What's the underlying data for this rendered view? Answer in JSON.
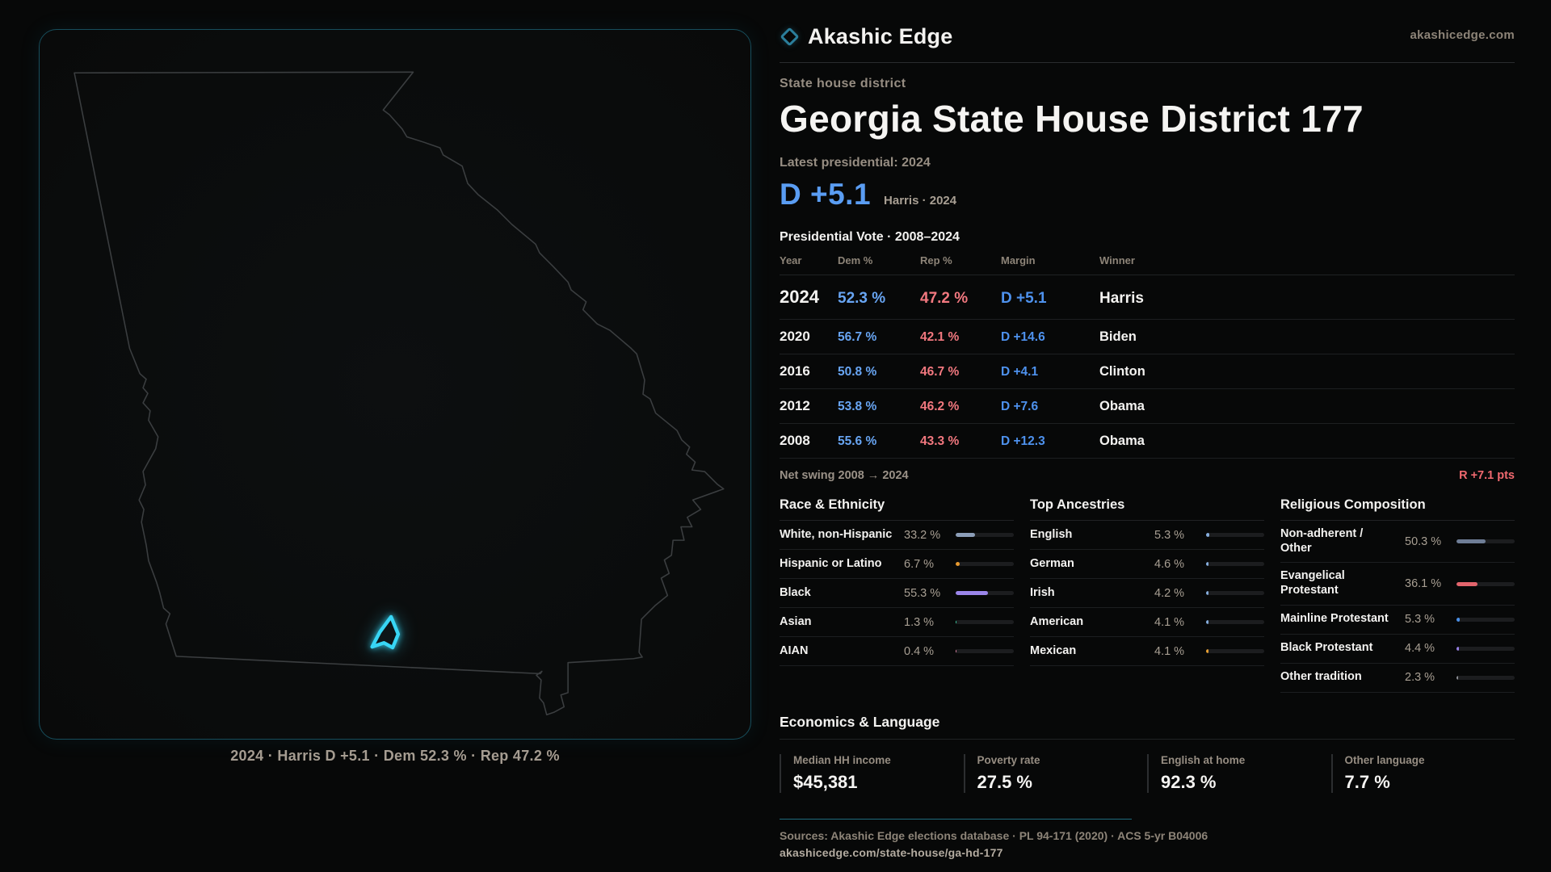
{
  "brand": {
    "name": "Akashic Edge",
    "site": "akashicedge.com"
  },
  "map": {
    "caption": "2024 · Harris D +5.1 · Dem 52.3 % · Rep 47.2 %"
  },
  "header": {
    "eyebrow": "State house district",
    "title": "Georgia State House District 177",
    "latest_label": "Latest presidential: 2024",
    "lead_margin": "D +5.1",
    "lead_sub": "Harris · 2024"
  },
  "table": {
    "title": "Presidential Vote · 2008–2024",
    "columns": [
      "Year",
      "Dem %",
      "Rep %",
      "Margin",
      "Winner"
    ],
    "rows": [
      {
        "year": "2024",
        "dem": "52.3 %",
        "rep": "47.2 %",
        "margin": "D +5.1",
        "winner": "Harris"
      },
      {
        "year": "2020",
        "dem": "56.7 %",
        "rep": "42.1 %",
        "margin": "D +14.6",
        "winner": "Biden"
      },
      {
        "year": "2016",
        "dem": "50.8 %",
        "rep": "46.7 %",
        "margin": "D +4.1",
        "winner": "Clinton"
      },
      {
        "year": "2012",
        "dem": "53.8 %",
        "rep": "46.2 %",
        "margin": "D +7.6",
        "winner": "Obama"
      },
      {
        "year": "2008",
        "dem": "55.6 %",
        "rep": "43.3 %",
        "margin": "D +12.3",
        "winner": "Obama"
      }
    ]
  },
  "net_swing": {
    "label": "Net swing 2008 → 2024",
    "value": "R +7.1 pts"
  },
  "demographics": [
    {
      "title": "Race & Ethnicity",
      "rows": [
        {
          "label": "White, non-Hispanic",
          "value": "33.2 %",
          "pct": 33.2,
          "color": "#8c9eb8"
        },
        {
          "label": "Hispanic or Latino",
          "value": "6.7 %",
          "pct": 6.7,
          "color": "#e89a2e"
        },
        {
          "label": "Black",
          "value": "55.3 %",
          "pct": 55.3,
          "color": "#9b85ea"
        },
        {
          "label": "Asian",
          "value": "1.3 %",
          "pct": 1.3,
          "color": "#3ed0a6"
        },
        {
          "label": "AIAN",
          "value": "0.4 %",
          "pct": 0.4,
          "color": "#e286a8"
        }
      ]
    },
    {
      "title": "Top Ancestries",
      "rows": [
        {
          "label": "English",
          "value": "5.3 %",
          "pct": 5.3,
          "color": "#86aede"
        },
        {
          "label": "German",
          "value": "4.6 %",
          "pct": 4.6,
          "color": "#86aede"
        },
        {
          "label": "Irish",
          "value": "4.2 %",
          "pct": 4.2,
          "color": "#86aede"
        },
        {
          "label": "American",
          "value": "4.1 %",
          "pct": 4.1,
          "color": "#86aede"
        },
        {
          "label": "Mexican",
          "value": "4.1 %",
          "pct": 4.1,
          "color": "#e8a033"
        }
      ]
    },
    {
      "title": "Religious Composition",
      "rows": [
        {
          "label": "Non-adherent / Other",
          "value": "50.3 %",
          "pct": 50.3,
          "color": "#6e7d96"
        },
        {
          "label": "Evangelical Protestant",
          "value": "36.1 %",
          "pct": 36.1,
          "color": "#e2646c"
        },
        {
          "label": "Mainline Protestant",
          "value": "5.3 %",
          "pct": 5.3,
          "color": "#4a90e8"
        },
        {
          "label": "Black Protestant",
          "value": "4.4 %",
          "pct": 4.4,
          "color": "#977fe6"
        },
        {
          "label": "Other tradition",
          "value": "2.3 %",
          "pct": 2.3,
          "color": "#8e9096"
        }
      ]
    }
  ],
  "economics": {
    "title": "Economics & Language",
    "stats": [
      {
        "label": "Median HH income",
        "value": "$45,381"
      },
      {
        "label": "Poverty rate",
        "value": "27.5 %"
      },
      {
        "label": "English at home",
        "value": "92.3 %"
      },
      {
        "label": "Other language",
        "value": "7.7 %"
      }
    ]
  },
  "footer": {
    "sources": "Sources: Akashic Edge elections database · PL 94-171 (2020) · ACS 5-yr B04006",
    "url": "akashicedge.com/state-house/ga-hd-177"
  },
  "colors": {
    "dem_blue": "#68a5f3",
    "rep_red": "#f2787f",
    "margin_blue": "#4e92ee",
    "accent_cyan": "#38d6f5",
    "swing_red": "#f0696f",
    "panel_border_teal": "#174e5c"
  }
}
